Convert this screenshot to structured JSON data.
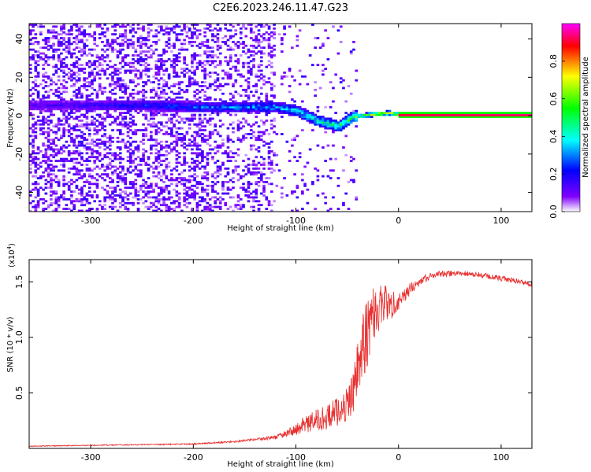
{
  "title": "C2E6.2023.246.11.47.G23",
  "chart_data": [
    {
      "type": "heatmap",
      "xlabel": "Height of straight line (km)",
      "ylabel": "Frequency (Hz)",
      "xlim": [
        -360,
        130
      ],
      "ylim": [
        -50,
        48
      ],
      "x_ticks": [
        -300,
        -200,
        -100,
        0,
        100
      ],
      "y_ticks": [
        -40,
        -20,
        0,
        20,
        40
      ],
      "colorbar": {
        "label": "Normalized spectral amplitude",
        "range": [
          0,
          1
        ],
        "ticks": [
          0.0,
          0.2,
          0.4,
          0.6,
          0.8
        ],
        "colors": [
          "#ffffff",
          "#8000ff",
          "#0000ff",
          "#00ffff",
          "#00ff00",
          "#ffff00",
          "#ff0000",
          "#ff00ff"
        ]
      },
      "ridge": [
        {
          "x": -360,
          "f": 5,
          "amp": 0.15
        },
        {
          "x": -300,
          "f": 5,
          "amp": 0.2
        },
        {
          "x": -250,
          "f": 5,
          "amp": 0.25
        },
        {
          "x": -200,
          "f": 4,
          "amp": 0.3
        },
        {
          "x": -160,
          "f": 4,
          "amp": 0.35
        },
        {
          "x": -120,
          "f": 4,
          "amp": 0.4
        },
        {
          "x": -100,
          "f": 2,
          "amp": 0.45
        },
        {
          "x": -80,
          "f": -3,
          "amp": 0.5
        },
        {
          "x": -60,
          "f": -6,
          "amp": 0.55
        },
        {
          "x": -45,
          "f": -1,
          "amp": 0.65
        },
        {
          "x": -30,
          "f": 0,
          "amp": 0.8
        },
        {
          "x": -10,
          "f": 1,
          "amp": 0.85
        },
        {
          "x": 0,
          "f": 0,
          "amp": 0.9
        },
        {
          "x": 130,
          "f": 0,
          "amp": 0.95
        }
      ]
    },
    {
      "type": "line",
      "xlabel": "Height of straight line (km)",
      "ylabel": "SNR (10 * v/v)",
      "y_multiplier": "(x10",
      "y_multiplier_exp": "4",
      "xlim": [
        -360,
        130
      ],
      "ylim": [
        0,
        1.7
      ],
      "x_ticks": [
        -300,
        -200,
        -100,
        0,
        100
      ],
      "y_ticks": [
        0.5,
        1.0,
        1.5
      ],
      "color": "#e83030",
      "series": [
        {
          "x": [
            -360,
            -320,
            -280,
            -240,
            -200,
            -180,
            -160,
            -140,
            -120,
            -110,
            -100,
            -90,
            -80,
            -70,
            -60,
            -50,
            -45,
            -40,
            -35,
            -30,
            -25,
            -20,
            -15,
            -10,
            -5,
            0,
            10,
            20,
            30,
            40,
            60,
            80,
            100,
            120,
            130
          ],
          "y": [
            0.02,
            0.025,
            0.03,
            0.035,
            0.04,
            0.05,
            0.06,
            0.08,
            0.1,
            0.13,
            0.17,
            0.22,
            0.25,
            0.28,
            0.33,
            0.4,
            0.5,
            0.7,
            0.9,
            1.1,
            1.2,
            1.25,
            1.3,
            1.3,
            1.3,
            1.35,
            1.42,
            1.5,
            1.55,
            1.57,
            1.58,
            1.56,
            1.53,
            1.5,
            1.48
          ],
          "noise": [
            0.004,
            0.004,
            0.005,
            0.005,
            0.006,
            0.007,
            0.008,
            0.01,
            0.02,
            0.03,
            0.05,
            0.08,
            0.1,
            0.11,
            0.13,
            0.15,
            0.2,
            0.25,
            0.3,
            0.35,
            0.3,
            0.25,
            0.2,
            0.15,
            0.12,
            0.1,
            0.06,
            0.04,
            0.03,
            0.03,
            0.025,
            0.025,
            0.025,
            0.025,
            0.025
          ]
        }
      ]
    }
  ]
}
